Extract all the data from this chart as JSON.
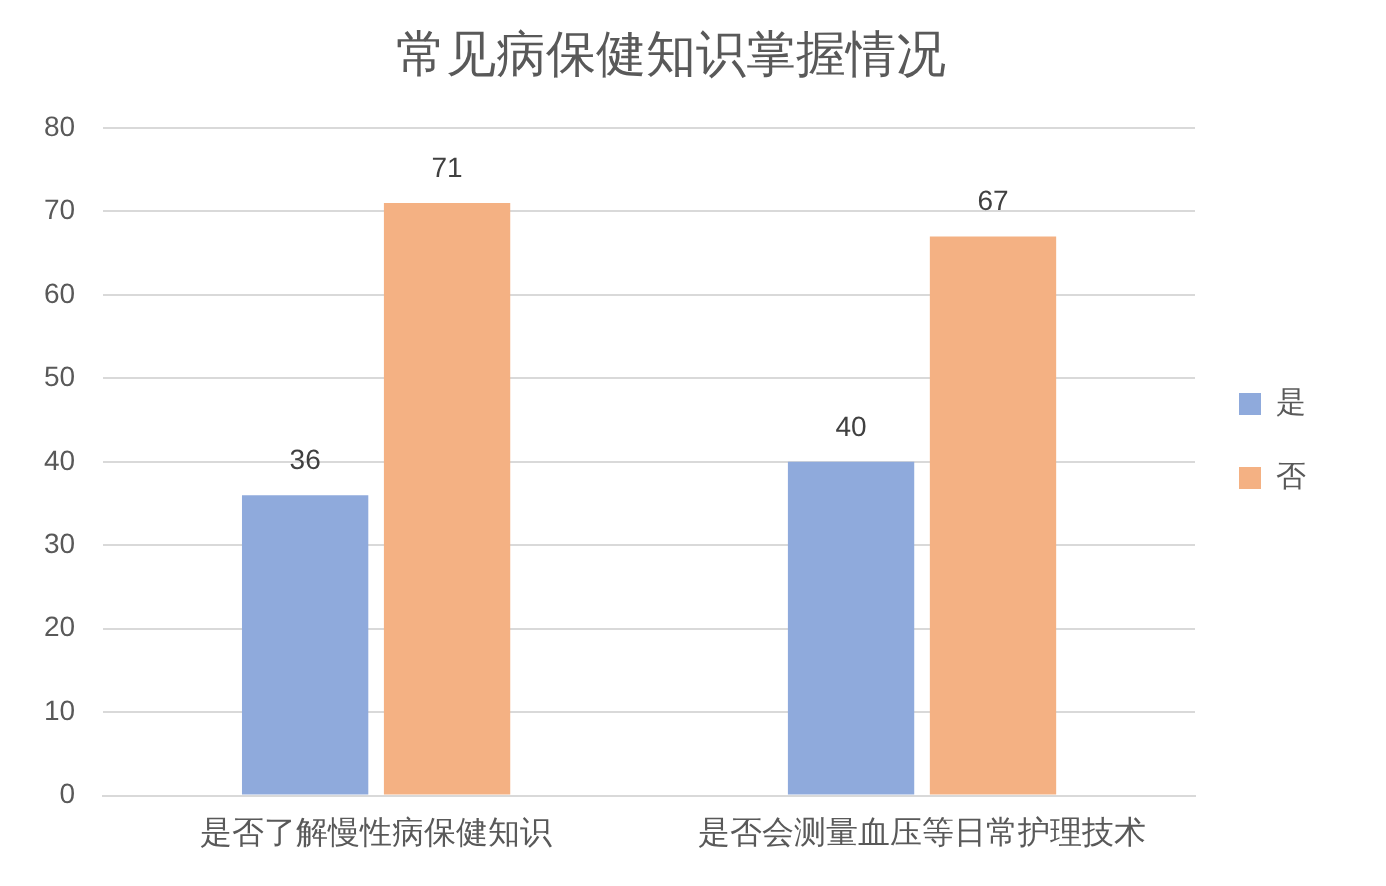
{
  "chart_data": {
    "type": "bar",
    "title": "常见病保健知识掌握情况",
    "categories": [
      "是否了解慢性病保健知识",
      "是否会测量血压等日常护理技术"
    ],
    "series": [
      {
        "name": "是",
        "color": "#8faadc",
        "values": [
          36,
          40
        ]
      },
      {
        "name": "否",
        "color": "#f4b183",
        "values": [
          71,
          67
        ]
      }
    ],
    "ylim": [
      0,
      80
    ],
    "yticks": [
      0,
      10,
      20,
      30,
      40,
      50,
      60,
      70,
      80
    ],
    "grid": "y",
    "legend": "right",
    "data_labels": true
  }
}
